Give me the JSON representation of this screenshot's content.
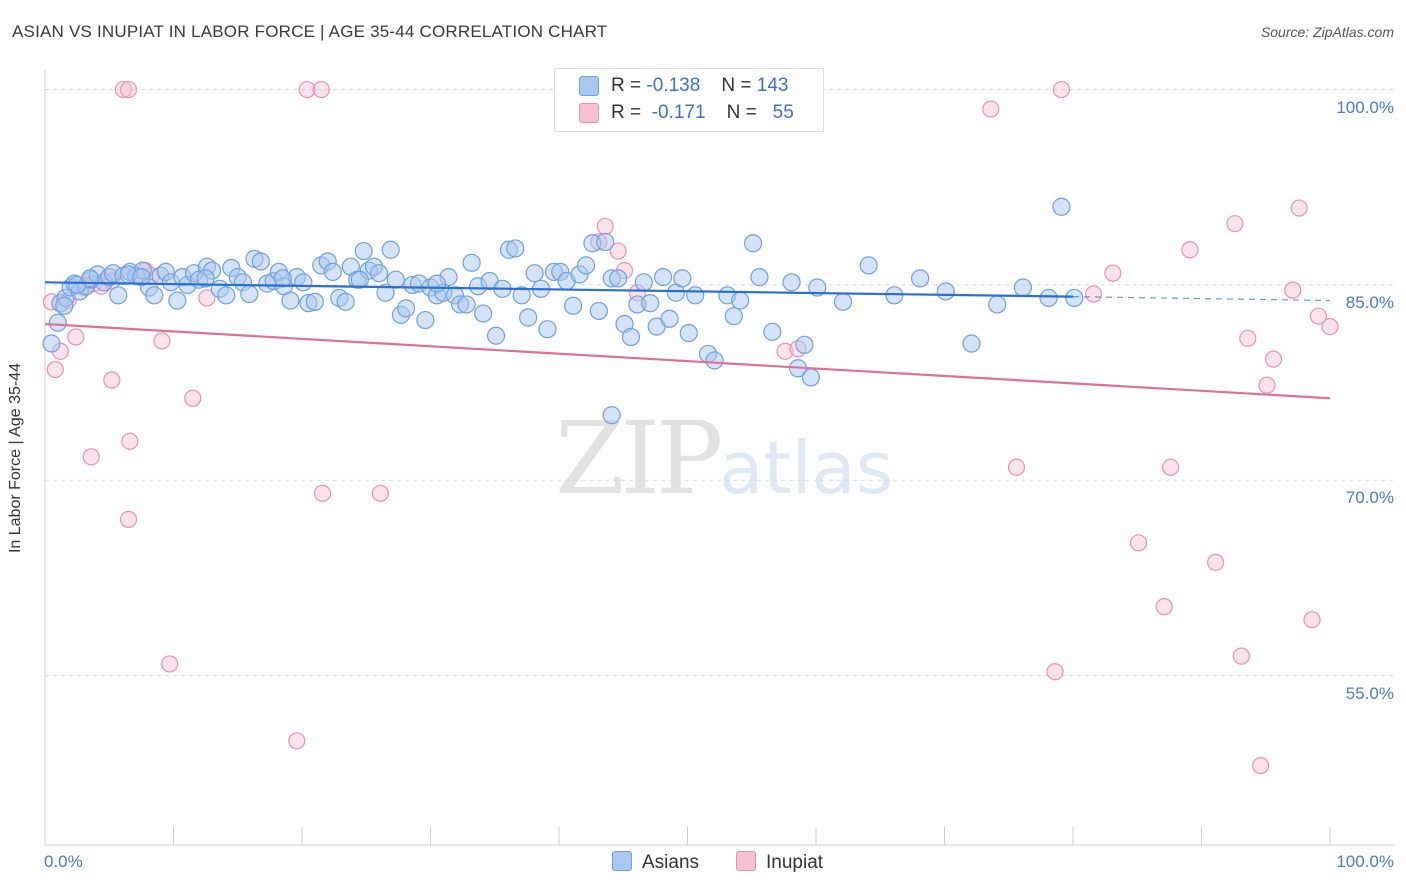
{
  "title": "ASIAN VS INUPIAT IN LABOR FORCE | AGE 35-44 CORRELATION CHART",
  "source": "Source: ZipAtlas.com",
  "watermark": {
    "zip": "ZIP",
    "atlas": "atlas"
  },
  "colors": {
    "asians_fill": "#a9c8f0",
    "asians_stroke": "#6f9fe0",
    "asians_line": "#2a6fd4",
    "inupiat_fill": "#f7bfd2",
    "inupiat_stroke": "#e890ae",
    "inupiat_line": "#e26d97",
    "grid": "#d8d8d8",
    "tick_label": "#4a7ac9"
  },
  "legend": {
    "rows": [
      {
        "r_label": "R =",
        "r_value": "-0.138",
        "n_label": "N =",
        "n_value": "143"
      },
      {
        "r_label": "R =",
        "r_value": "-0.171",
        "n_label": "N =",
        "n_value": "55"
      }
    ]
  },
  "bottom_legend": {
    "asians": "Asians",
    "inupiat": "Inupiat"
  },
  "chart_data": {
    "type": "scatter",
    "title": "ASIAN VS INUPIAT IN LABOR FORCE | AGE 35-44 CORRELATION CHART",
    "xlabel": "",
    "ylabel": "In Labor Force | Age 35-44",
    "xlim": [
      0,
      100
    ],
    "ylim": [
      42,
      101.5
    ],
    "y_ticks": [
      {
        "value": 100,
        "label": "100.0%"
      },
      {
        "value": 85,
        "label": "85.0%"
      },
      {
        "value": 70,
        "label": "70.0%"
      },
      {
        "value": 55,
        "label": "55.0%"
      }
    ],
    "x_ticks": [
      {
        "value": 0,
        "label": "0.0%"
      },
      {
        "value": 100,
        "label": "100.0%"
      }
    ],
    "grid": "horizontal dashed",
    "legend_position": "top-center",
    "series": [
      {
        "name": "Asians",
        "trend": {
          "x1": 0,
          "y1": 85.2,
          "x2": 80,
          "y2": 84.1,
          "dashed_to_x": 100,
          "dashed_to_y": 83.8
        },
        "points": [
          [
            1,
            82.1
          ],
          [
            1.2,
            83.6
          ],
          [
            1.6,
            84.0
          ],
          [
            2,
            84.8
          ],
          [
            2.3,
            85.1
          ],
          [
            2.7,
            84.5
          ],
          [
            3.2,
            84.9
          ],
          [
            3.6,
            85.4
          ],
          [
            4.1,
            85.8
          ],
          [
            4.6,
            85.2
          ],
          [
            5,
            85.6
          ],
          [
            5.3,
            85.9
          ],
          [
            5.7,
            84.2
          ],
          [
            6.1,
            85.7
          ],
          [
            6.6,
            86.0
          ],
          [
            7.1,
            85.7
          ],
          [
            7.6,
            86.1
          ],
          [
            8.1,
            84.8
          ],
          [
            8.5,
            84.2
          ],
          [
            9,
            85.7
          ],
          [
            9.4,
            86.0
          ],
          [
            9.8,
            85.2
          ],
          [
            10.3,
            83.8
          ],
          [
            10.7,
            85.6
          ],
          [
            11.1,
            85.0
          ],
          [
            11.6,
            85.9
          ],
          [
            12,
            85.4
          ],
          [
            12.6,
            86.4
          ],
          [
            13,
            86.1
          ],
          [
            13.6,
            84.7
          ],
          [
            14.1,
            84.2
          ],
          [
            14.5,
            86.3
          ],
          [
            15,
            85.6
          ],
          [
            15.4,
            85.2
          ],
          [
            15.9,
            84.3
          ],
          [
            16.3,
            87.0
          ],
          [
            16.8,
            86.8
          ],
          [
            17.3,
            85.1
          ],
          [
            17.8,
            85.3
          ],
          [
            18.2,
            86.0
          ],
          [
            18.6,
            84.9
          ],
          [
            19.1,
            83.8
          ],
          [
            19.6,
            85.6
          ],
          [
            20.1,
            85.2
          ],
          [
            20.5,
            83.6
          ],
          [
            21,
            83.7
          ],
          [
            21.5,
            86.5
          ],
          [
            22,
            86.8
          ],
          [
            22.4,
            86.0
          ],
          [
            22.9,
            84.0
          ],
          [
            23.4,
            83.7
          ],
          [
            23.8,
            86.4
          ],
          [
            24.3,
            85.4
          ],
          [
            24.8,
            87.6
          ],
          [
            25.2,
            86.1
          ],
          [
            25.6,
            86.4
          ],
          [
            26,
            85.9
          ],
          [
            26.5,
            84.4
          ],
          [
            26.9,
            87.7
          ],
          [
            27.3,
            85.4
          ],
          [
            27.7,
            82.7
          ],
          [
            28.1,
            83.2
          ],
          [
            28.6,
            85.0
          ],
          [
            29.1,
            85.1
          ],
          [
            29.6,
            82.3
          ],
          [
            30,
            84.8
          ],
          [
            30.5,
            84.2
          ],
          [
            31,
            84.4
          ],
          [
            31.4,
            85.6
          ],
          [
            31.9,
            84.2
          ],
          [
            32.3,
            83.5
          ],
          [
            32.8,
            83.5
          ],
          [
            33.2,
            86.7
          ],
          [
            33.7,
            84.9
          ],
          [
            34.1,
            82.8
          ],
          [
            34.6,
            85.3
          ],
          [
            35.1,
            81.1
          ],
          [
            35.6,
            84.7
          ],
          [
            36.1,
            87.7
          ],
          [
            36.6,
            87.8
          ],
          [
            37.1,
            84.2
          ],
          [
            37.6,
            82.5
          ],
          [
            38.1,
            85.9
          ],
          [
            38.6,
            84.7
          ],
          [
            39.1,
            81.6
          ],
          [
            39.6,
            86.0
          ],
          [
            40.1,
            86.0
          ],
          [
            40.6,
            85.3
          ],
          [
            41.1,
            83.4
          ],
          [
            41.6,
            85.8
          ],
          [
            42.1,
            86.5
          ],
          [
            42.6,
            88.2
          ],
          [
            43.1,
            83.0
          ],
          [
            43.6,
            88.3
          ],
          [
            44.1,
            85.5
          ],
          [
            44.6,
            85.5
          ],
          [
            45.1,
            82.0
          ],
          [
            45.6,
            81.0
          ],
          [
            46.1,
            83.5
          ],
          [
            46.6,
            85.2
          ],
          [
            47.1,
            83.6
          ],
          [
            47.6,
            81.8
          ],
          [
            48.1,
            85.6
          ],
          [
            48.6,
            82.4
          ],
          [
            49.1,
            84.4
          ],
          [
            49.6,
            85.5
          ],
          [
            50.1,
            81.3
          ],
          [
            50.6,
            84.2
          ],
          [
            51.6,
            79.7
          ],
          [
            52.1,
            79.2
          ],
          [
            53.1,
            84.2
          ],
          [
            53.6,
            82.6
          ],
          [
            54.1,
            83.8
          ],
          [
            55.1,
            88.2
          ],
          [
            55.6,
            85.6
          ],
          [
            56.6,
            81.4
          ],
          [
            58.1,
            85.2
          ],
          [
            58.6,
            78.6
          ],
          [
            59.1,
            80.4
          ],
          [
            59.6,
            77.9
          ],
          [
            60.1,
            84.8
          ],
          [
            62.1,
            83.7
          ],
          [
            64.1,
            86.5
          ],
          [
            66.1,
            84.2
          ],
          [
            68.1,
            85.5
          ],
          [
            70.1,
            84.5
          ],
          [
            72.1,
            80.5
          ],
          [
            74.1,
            83.5
          ],
          [
            76.1,
            84.8
          ],
          [
            78.1,
            84.0
          ],
          [
            80.1,
            84.0
          ],
          [
            79.1,
            91.0
          ],
          [
            44.1,
            75.0
          ],
          [
            0.5,
            80.5
          ],
          [
            1.5,
            83.4
          ],
          [
            2.5,
            85.0
          ],
          [
            3.5,
            85.5
          ],
          [
            6.5,
            85.8
          ],
          [
            7.5,
            85.6
          ],
          [
            12.5,
            85.5
          ],
          [
            18.5,
            85.5
          ],
          [
            24.5,
            85.4
          ],
          [
            30.5,
            85.1
          ]
        ]
      },
      {
        "name": "Inupiat",
        "trend": {
          "x1": 0,
          "y1": 82.0,
          "x2": 100,
          "y2": 76.3
        },
        "points": [
          [
            0.5,
            83.7
          ],
          [
            0.8,
            78.5
          ],
          [
            1.2,
            79.9
          ],
          [
            1.8,
            83.8
          ],
          [
            2.4,
            81.0
          ],
          [
            3.1,
            84.8
          ],
          [
            3.8,
            85.1
          ],
          [
            4.4,
            84.9
          ],
          [
            5.2,
            85.3
          ],
          [
            6.1,
            100
          ],
          [
            6.5,
            100
          ],
          [
            7.8,
            86.1
          ],
          [
            8.3,
            85.7
          ],
          [
            9.1,
            80.7
          ],
          [
            5.2,
            77.7
          ],
          [
            3.6,
            71.8
          ],
          [
            6.6,
            73.0
          ],
          [
            6.5,
            67.0
          ],
          [
            9.7,
            55.9
          ],
          [
            11.5,
            76.3
          ],
          [
            12.6,
            84.0
          ],
          [
            20.4,
            100
          ],
          [
            21.5,
            100
          ],
          [
            21.6,
            69.0
          ],
          [
            26.1,
            69.0
          ],
          [
            19.6,
            50.0
          ],
          [
            43.1,
            88.3
          ],
          [
            43.6,
            89.5
          ],
          [
            44.6,
            87.6
          ],
          [
            45.1,
            86.1
          ],
          [
            46.1,
            84.4
          ],
          [
            57.6,
            79.9
          ],
          [
            58.6,
            80.1
          ],
          [
            73.6,
            98.5
          ],
          [
            75.6,
            71.0
          ],
          [
            79.1,
            100
          ],
          [
            78.6,
            55.3
          ],
          [
            81.6,
            84.3
          ],
          [
            85.1,
            65.2
          ],
          [
            87.1,
            60.3
          ],
          [
            87.6,
            71.0
          ],
          [
            89.1,
            87.7
          ],
          [
            91.1,
            63.7
          ],
          [
            92.6,
            89.7
          ],
          [
            93.1,
            56.5
          ],
          [
            93.6,
            80.9
          ],
          [
            94.6,
            48.1
          ],
          [
            95.6,
            79.3
          ],
          [
            95.1,
            77.3
          ],
          [
            97.1,
            84.6
          ],
          [
            97.6,
            90.9
          ],
          [
            98.6,
            59.3
          ],
          [
            99.1,
            82.6
          ],
          [
            100,
            81.8
          ],
          [
            83.1,
            85.9
          ]
        ]
      }
    ]
  }
}
